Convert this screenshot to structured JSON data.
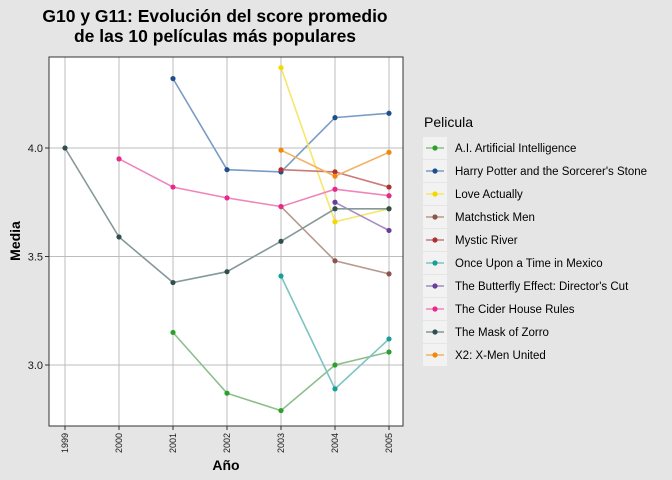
{
  "chart_data": {
    "type": "line",
    "title": "G10 y G11: Evolución del score promedio",
    "subtitle": "de las 10 películas más populares",
    "xlabel": "Año",
    "ylabel": "Media",
    "legend_title": "Pelicula",
    "legend_position": "right",
    "grid": true,
    "xlim": [
      1999,
      2005
    ],
    "ylim": [
      2.75,
      4.4
    ],
    "x_ticks": [
      "1999",
      "2000",
      "2001",
      "2002",
      "2003",
      "2004",
      "2005"
    ],
    "y_ticks": [
      "3.0",
      "3.5",
      "4.0"
    ],
    "series": [
      {
        "name": "A.I. Artificial Intelligence",
        "color": "#2ca02c",
        "line_color": "#8dbf8d",
        "points": [
          [
            2001,
            3.15
          ],
          [
            2002,
            2.87
          ],
          [
            2003,
            2.79
          ],
          [
            2004,
            3.0
          ],
          [
            2005,
            3.06
          ]
        ]
      },
      {
        "name": "Harry Potter and the Sorcerer's Stone",
        "color": "#1f4e8c",
        "line_color": "#7a9cc4",
        "points": [
          [
            2001,
            4.32
          ],
          [
            2002,
            3.9
          ],
          [
            2003,
            3.89
          ],
          [
            2004,
            4.14
          ],
          [
            2005,
            4.16
          ]
        ]
      },
      {
        "name": "Love Actually",
        "color": "#f5d800",
        "line_color": "#f7e66a",
        "points": [
          [
            2003,
            4.37
          ],
          [
            2004,
            3.66
          ],
          [
            2005,
            3.72
          ]
        ]
      },
      {
        "name": "Matchstick Men",
        "color": "#8c564b",
        "line_color": "#b89990",
        "points": [
          [
            2003,
            3.73
          ],
          [
            2004,
            3.48
          ],
          [
            2005,
            3.42
          ]
        ]
      },
      {
        "name": "Mystic River",
        "color": "#b03030",
        "line_color": "#c97b7b",
        "points": [
          [
            2003,
            3.9
          ],
          [
            2004,
            3.89
          ],
          [
            2005,
            3.82
          ]
        ]
      },
      {
        "name": "Once Upon a Time in Mexico",
        "color": "#17a09a",
        "line_color": "#7cc4c1",
        "points": [
          [
            2003,
            3.41
          ],
          [
            2004,
            2.89
          ],
          [
            2005,
            3.12
          ]
        ]
      },
      {
        "name": "The Butterfly Effect: Director's Cut",
        "color": "#6a3d9a",
        "line_color": "#a58cc3",
        "points": [
          [
            2004,
            3.75
          ],
          [
            2005,
            3.62
          ]
        ]
      },
      {
        "name": "The Cider House Rules",
        "color": "#e7298a",
        "line_color": "#ef86bb",
        "points": [
          [
            2000,
            3.95
          ],
          [
            2001,
            3.82
          ],
          [
            2002,
            3.77
          ],
          [
            2003,
            3.73
          ],
          [
            2004,
            3.81
          ],
          [
            2005,
            3.78
          ]
        ]
      },
      {
        "name": "The Mask of Zorro",
        "color": "#2f4f4f",
        "line_color": "#869898",
        "points": [
          [
            1999,
            4.0
          ],
          [
            2000,
            3.59
          ],
          [
            2001,
            3.38
          ],
          [
            2002,
            3.43
          ],
          [
            2003,
            3.57
          ],
          [
            2004,
            3.72
          ],
          [
            2005,
            3.72
          ]
        ]
      },
      {
        "name": "X2: X-Men United",
        "color": "#f0880a",
        "line_color": "#f4b163",
        "points": [
          [
            2003,
            3.99
          ],
          [
            2004,
            3.87
          ],
          [
            2005,
            3.98
          ]
        ]
      }
    ]
  }
}
